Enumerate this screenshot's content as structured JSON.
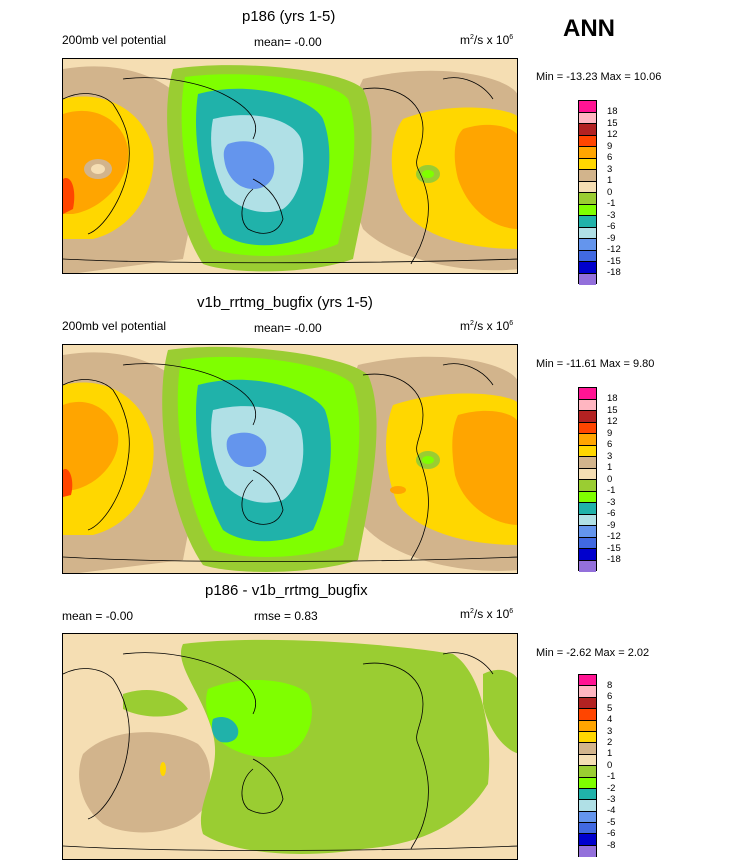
{
  "header": {
    "season": "ANN"
  },
  "palette": {
    "p18": "#ff1493",
    "p15": "#ffb6c1",
    "p12": "#b22222",
    "p9": "#ff4500",
    "p6": "#ffa500",
    "p3": "#ffd700",
    "p1": "#d2b48c",
    "p0": "#f5deb3",
    "n1": "#9acd32",
    "n3": "#7fff00",
    "n6": "#20b2aa",
    "n9": "#b0e0e6",
    "n12": "#6495ed",
    "n15": "#4169e1",
    "n18": "#0000cd",
    "n21": "#9370db"
  },
  "panels": [
    {
      "title": "p186 (yrs 1-5)",
      "left_label": "200mb vel potential",
      "mean_label": "mean=  -0.00",
      "units_label": "m",
      "units_rest": "/s x 10",
      "minmax": "Min = -13.23 Max =  10.06",
      "levels": [
        "18",
        "15",
        "12",
        "9",
        "6",
        "3",
        "1",
        "0",
        "-1",
        "-3",
        "-6",
        "-9",
        "-12",
        "-15",
        "-18"
      ]
    },
    {
      "title": "v1b_rrtmg_bugfix (yrs 1-5)",
      "left_label": "200mb vel potential",
      "mean_label": "mean=  -0.00",
      "units_label": "m",
      "units_rest": "/s x 10",
      "minmax": "Min = -11.61 Max =   9.80",
      "levels": [
        "18",
        "15",
        "12",
        "9",
        "6",
        "3",
        "1",
        "0",
        "-1",
        "-3",
        "-6",
        "-9",
        "-12",
        "-15",
        "-18"
      ]
    },
    {
      "title": "p186 - v1b_rrtmg_bugfix",
      "left_label": "mean =  -0.00",
      "mean_label": "rmse =   0.83",
      "units_label": "m",
      "units_rest": "/s x 10",
      "minmax": "Min =  -2.62 Max =   2.02",
      "levels": [
        "8",
        "6",
        "5",
        "4",
        "3",
        "2",
        "1",
        "0",
        "-1",
        "-2",
        "-3",
        "-4",
        "-5",
        "-6",
        "-8"
      ]
    }
  ]
}
